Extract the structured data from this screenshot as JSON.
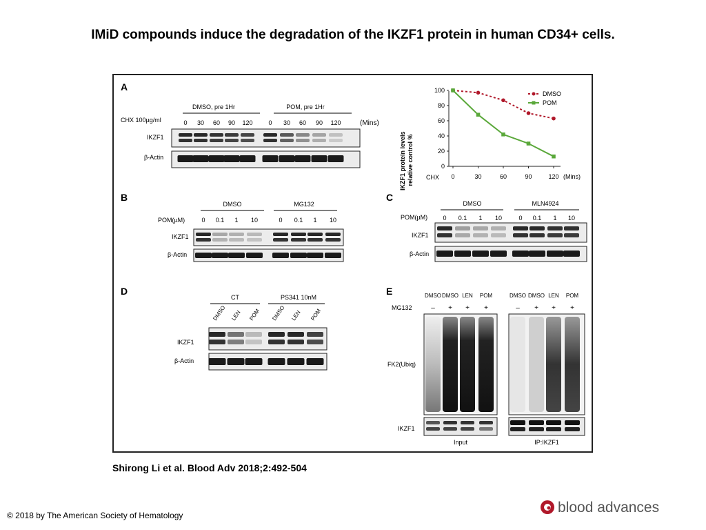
{
  "title": "IMiD compounds induce the degradation of the IKZF1 protein in human CD34+ cells.",
  "citation": "Shirong Li et al. Blood Adv 2018;2:492-504",
  "copyright": "© 2018 by The American Society of Hematology",
  "logo_text": "blood advances",
  "colors": {
    "dmso_series": "#b0182a",
    "pom_series": "#5aa83a",
    "axis": "#222222"
  },
  "panels": {
    "A": {
      "letter": "A",
      "group_labels": [
        "DMSO, pre 1Hr",
        "POM, pre 1Hr"
      ],
      "treatment_label": "CHX 100µg/ml",
      "time_points": [
        "0",
        "30",
        "60",
        "90",
        "120",
        "0",
        "30",
        "60",
        "90",
        "120"
      ],
      "unit": "(Mins)",
      "rows": [
        "IKZF1",
        "β-Actin"
      ]
    },
    "B": {
      "letter": "B",
      "group_labels": [
        "DMSO",
        "MG132"
      ],
      "dose_label": "POM(µM)",
      "doses": [
        "0",
        "0.1",
        "1",
        "10",
        "0",
        "0.1",
        "1",
        "10"
      ],
      "rows": [
        "IKZF1",
        "β-Actin"
      ]
    },
    "C": {
      "letter": "C",
      "group_labels": [
        "DMSO",
        "MLN4924"
      ],
      "dose_label": "POM(µM)",
      "doses": [
        "0",
        "0.1",
        "1",
        "10",
        "0",
        "0.1",
        "1",
        "10"
      ],
      "rows": [
        "IKZF1",
        "β-Actin"
      ]
    },
    "D": {
      "letter": "D",
      "group_labels": [
        "CT",
        "PS341 10nM"
      ],
      "lanes": [
        "DMSO",
        "LEN",
        "POM",
        "DMSO",
        "LEN",
        "POM"
      ],
      "rows": [
        "IKZF1",
        "β-Actin"
      ]
    },
    "E": {
      "letter": "E",
      "lanes": [
        "DMSO",
        "DMSO",
        "LEN",
        "POM"
      ],
      "mg132_label": "MG132",
      "mg132": [
        "–",
        "+",
        "+",
        "+"
      ],
      "rows": [
        "FK2(Ubiq)",
        "IKZF1"
      ],
      "blot_labels": [
        "Input",
        "IP:IKZF1"
      ]
    }
  },
  "chart_data": {
    "type": "line",
    "title": "",
    "ylabel": "IKZF1 protein levels relative control %",
    "xlabel": "CHX",
    "x_unit": "(Mins)",
    "x": [
      0,
      30,
      60,
      90,
      120
    ],
    "ylim": [
      0,
      100
    ],
    "yticks": [
      0,
      20,
      40,
      60,
      80,
      100
    ],
    "legend_position": "top-right",
    "series": [
      {
        "name": "DMSO",
        "values": [
          100,
          97,
          87,
          70,
          63
        ],
        "style": "dotted",
        "marker": "circle"
      },
      {
        "name": "POM",
        "values": [
          100,
          68,
          42,
          30,
          13
        ],
        "style": "solid",
        "marker": "square"
      }
    ]
  }
}
